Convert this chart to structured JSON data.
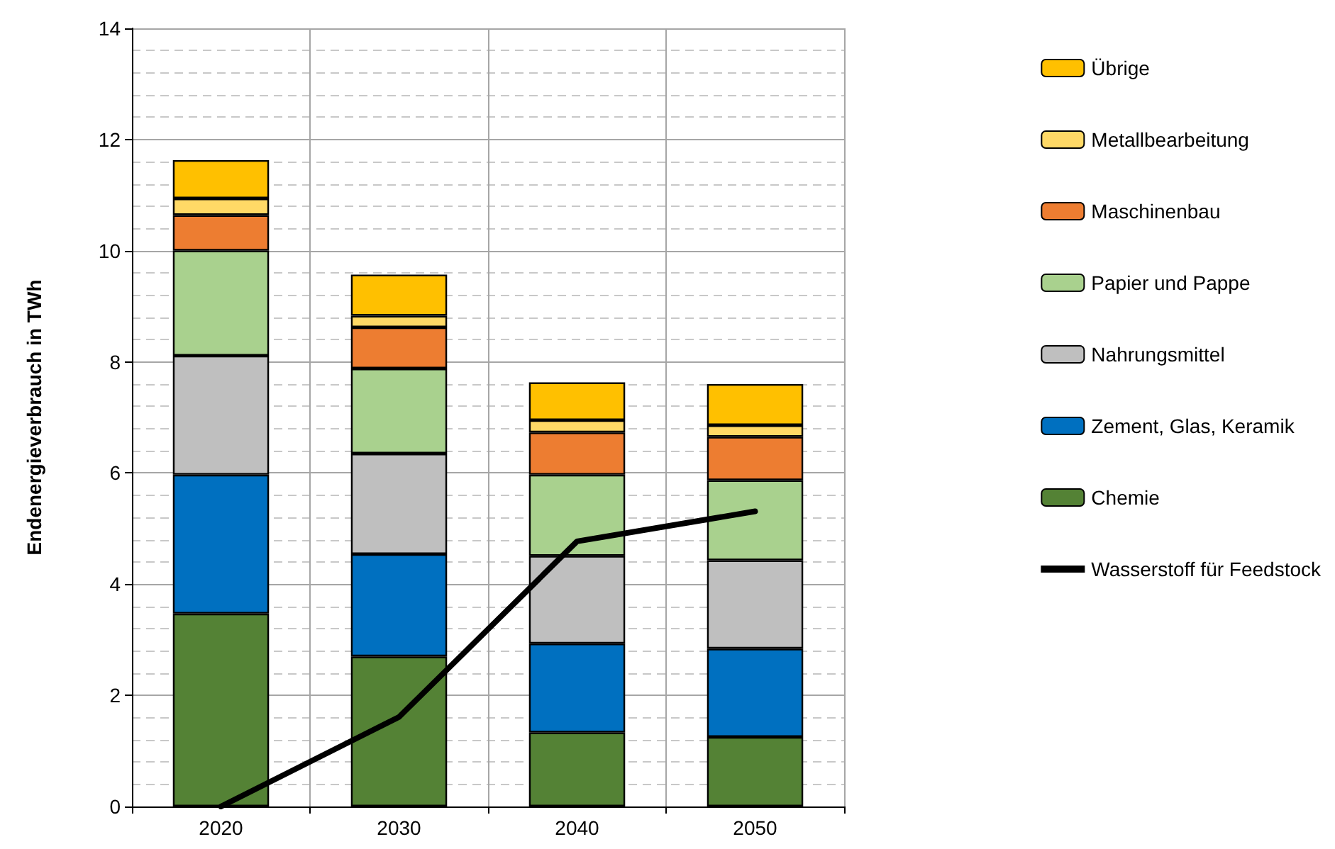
{
  "chart_data": {
    "type": "bar",
    "stacked": true,
    "ylabel": "Endenergieverbrauch in TWh",
    "categories": [
      "2020",
      "2030",
      "2040",
      "2050"
    ],
    "series": [
      {
        "name": "Chemie",
        "color": "#548235",
        "values": [
          3.47,
          2.7,
          1.33,
          1.25
        ]
      },
      {
        "name": "Zement, Glas, Keramik",
        "color": "#0070c0",
        "values": [
          2.5,
          1.84,
          1.6,
          1.59
        ]
      },
      {
        "name": "Nahrungsmittel",
        "color": "#bfbfbf",
        "values": [
          2.14,
          1.81,
          1.58,
          1.59
        ]
      },
      {
        "name": "Papier und Pappe",
        "color": "#a9d18e",
        "values": [
          1.89,
          1.53,
          1.46,
          1.44
        ]
      },
      {
        "name": "Maschinenbau",
        "color": "#ed7d31",
        "values": [
          0.64,
          0.74,
          0.76,
          0.78
        ]
      },
      {
        "name": "Metallbearbeitung",
        "color": "#ffd966",
        "values": [
          0.3,
          0.21,
          0.22,
          0.21
        ]
      },
      {
        "name": "Übrige",
        "color": "#ffc000",
        "values": [
          0.69,
          0.74,
          0.68,
          0.74
        ]
      },
      {
        "name": "Wasserstoff für Feedstock",
        "type": "line",
        "color": "#000000",
        "values": [
          0,
          1.61,
          4.77,
          5.31
        ]
      }
    ],
    "ylim": [
      0,
      14
    ],
    "yticks": [
      0,
      2,
      4,
      6,
      8,
      10,
      12,
      14
    ],
    "grid": true,
    "legend": "right",
    "marker": "none",
    "line_style": "solid"
  }
}
